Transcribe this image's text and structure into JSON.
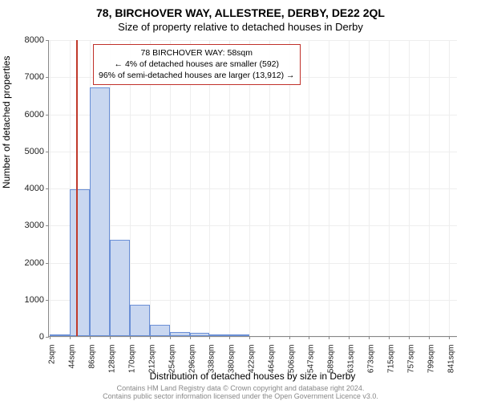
{
  "title_line1": "78, BIRCHOVER WAY, ALLESTREE, DERBY, DE22 2QL",
  "title_line2": "Size of property relative to detached houses in Derby",
  "ylabel": "Number of detached properties",
  "xlabel": "Distribution of detached houses by size in Derby",
  "footer_line1": "Contains HM Land Registry data © Crown copyright and database right 2024.",
  "footer_line2": "Contains public sector information licensed under the Open Government Licence v3.0.",
  "chart": {
    "type": "histogram",
    "ylim": [
      0,
      8000
    ],
    "yticks": [
      0,
      1000,
      2000,
      3000,
      4000,
      5000,
      6000,
      7000,
      8000
    ],
    "xtick_labels": [
      "2sqm",
      "44sqm",
      "86sqm",
      "128sqm",
      "170sqm",
      "212sqm",
      "254sqm",
      "296sqm",
      "338sqm",
      "380sqm",
      "422sqm",
      "464sqm",
      "506sqm",
      "547sqm",
      "589sqm",
      "631sqm",
      "673sqm",
      "715sqm",
      "757sqm",
      "799sqm",
      "841sqm"
    ],
    "xtick_positions": [
      2,
      44,
      86,
      128,
      170,
      212,
      254,
      296,
      338,
      380,
      422,
      464,
      506,
      547,
      589,
      631,
      673,
      715,
      757,
      799,
      841
    ],
    "xlim": [
      0,
      860
    ],
    "bin_edges": [
      2,
      44,
      86,
      128,
      170,
      212,
      254,
      296,
      338,
      380,
      422,
      464,
      506,
      547,
      589,
      631,
      673,
      715,
      757,
      799,
      841
    ],
    "bin_counts": [
      10,
      3950,
      6700,
      2600,
      850,
      300,
      110,
      80,
      50,
      30,
      0,
      0,
      0,
      0,
      0,
      0,
      0,
      0,
      0,
      0
    ],
    "bar_fill": "#c9d7f0",
    "bar_stroke": "#6a8fd6",
    "grid_color": "#eeeeee",
    "axis_color": "#888888",
    "background_color": "#ffffff",
    "marker_x": 58,
    "marker_color": "#c0392b"
  },
  "annotation": {
    "line1": "78 BIRCHOVER WAY: 58sqm",
    "line2": "← 4% of detached houses are smaller (592)",
    "line3": "96% of semi-detached houses are larger (13,912) →",
    "border_color": "#c0302a",
    "fontsize": 10.5
  }
}
